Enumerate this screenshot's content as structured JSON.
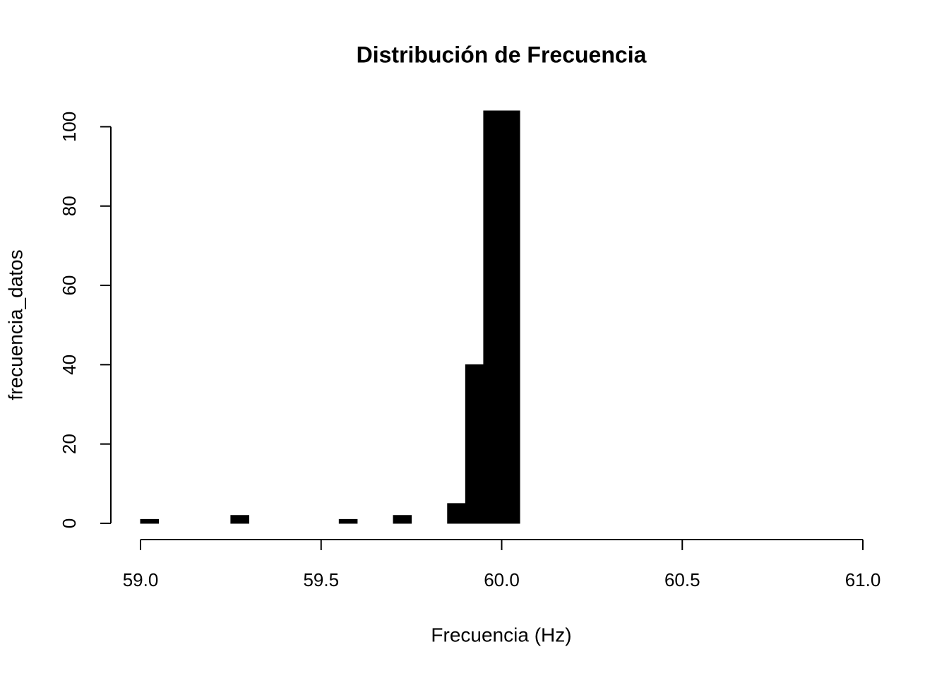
{
  "chart_data": {
    "type": "histogram",
    "title": "Distribución de Frecuencia",
    "x_label": "Frecuencia (Hz)",
    "y_label": "frecuencia_datos",
    "bins": [
      59.0,
      59.05,
      59.1,
      59.15,
      59.2,
      59.25,
      59.3,
      59.35,
      59.4,
      59.45,
      59.5,
      59.55,
      59.6,
      59.65,
      59.7,
      59.75,
      59.8,
      59.85,
      59.9,
      59.95,
      60.0,
      60.05
    ],
    "values": [
      1,
      0,
      0,
      0,
      0,
      2,
      0,
      0,
      0,
      0,
      0,
      1,
      0,
      0,
      2,
      0,
      0,
      5,
      40,
      104,
      104
    ],
    "color": "#000000",
    "xlim": [
      59,
      61
    ],
    "xticks": [
      {
        "value": 59,
        "label": "59.0"
      },
      {
        "value": 59.5,
        "label": "59.5"
      },
      {
        "value": 60,
        "label": "60.0"
      },
      {
        "value": 60.5,
        "label": "60.5"
      },
      {
        "value": 61,
        "label": "61.0"
      }
    ],
    "ylim": [
      0,
      104
    ],
    "yticks": [
      0,
      20,
      40,
      60,
      80,
      100
    ]
  }
}
